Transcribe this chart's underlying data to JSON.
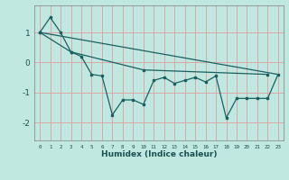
{
  "xlabel": "Humidex (Indice chaleur)",
  "background_color": "#c0e8e0",
  "grid_color": "#d8a8a8",
  "line_color": "#1a6060",
  "xlim": [
    -0.5,
    23.5
  ],
  "ylim": [
    -2.6,
    1.9
  ],
  "yticks": [
    -2,
    -1,
    0,
    1
  ],
  "xticks": [
    0,
    1,
    2,
    3,
    4,
    5,
    6,
    7,
    8,
    9,
    10,
    11,
    12,
    13,
    14,
    15,
    16,
    17,
    18,
    19,
    20,
    21,
    22,
    23
  ],
  "series1_x": [
    0,
    1,
    2,
    3,
    4,
    5,
    6,
    7,
    8,
    9,
    10,
    11,
    12,
    13,
    14,
    15,
    16,
    17,
    18,
    19,
    20,
    21,
    22,
    23
  ],
  "series1_y": [
    1.0,
    1.5,
    1.0,
    0.35,
    0.2,
    -0.4,
    -0.45,
    -1.75,
    -1.25,
    -1.25,
    -1.4,
    -0.6,
    -0.5,
    -0.7,
    -0.6,
    -0.5,
    -0.65,
    -0.45,
    -1.85,
    -1.2,
    -1.2,
    -1.2,
    -1.2,
    -0.4
  ],
  "series2_x": [
    0,
    3,
    10,
    22
  ],
  "series2_y": [
    1.0,
    0.35,
    -0.25,
    -0.4
  ],
  "series3_x": [
    0,
    23
  ],
  "series3_y": [
    1.0,
    -0.4
  ]
}
